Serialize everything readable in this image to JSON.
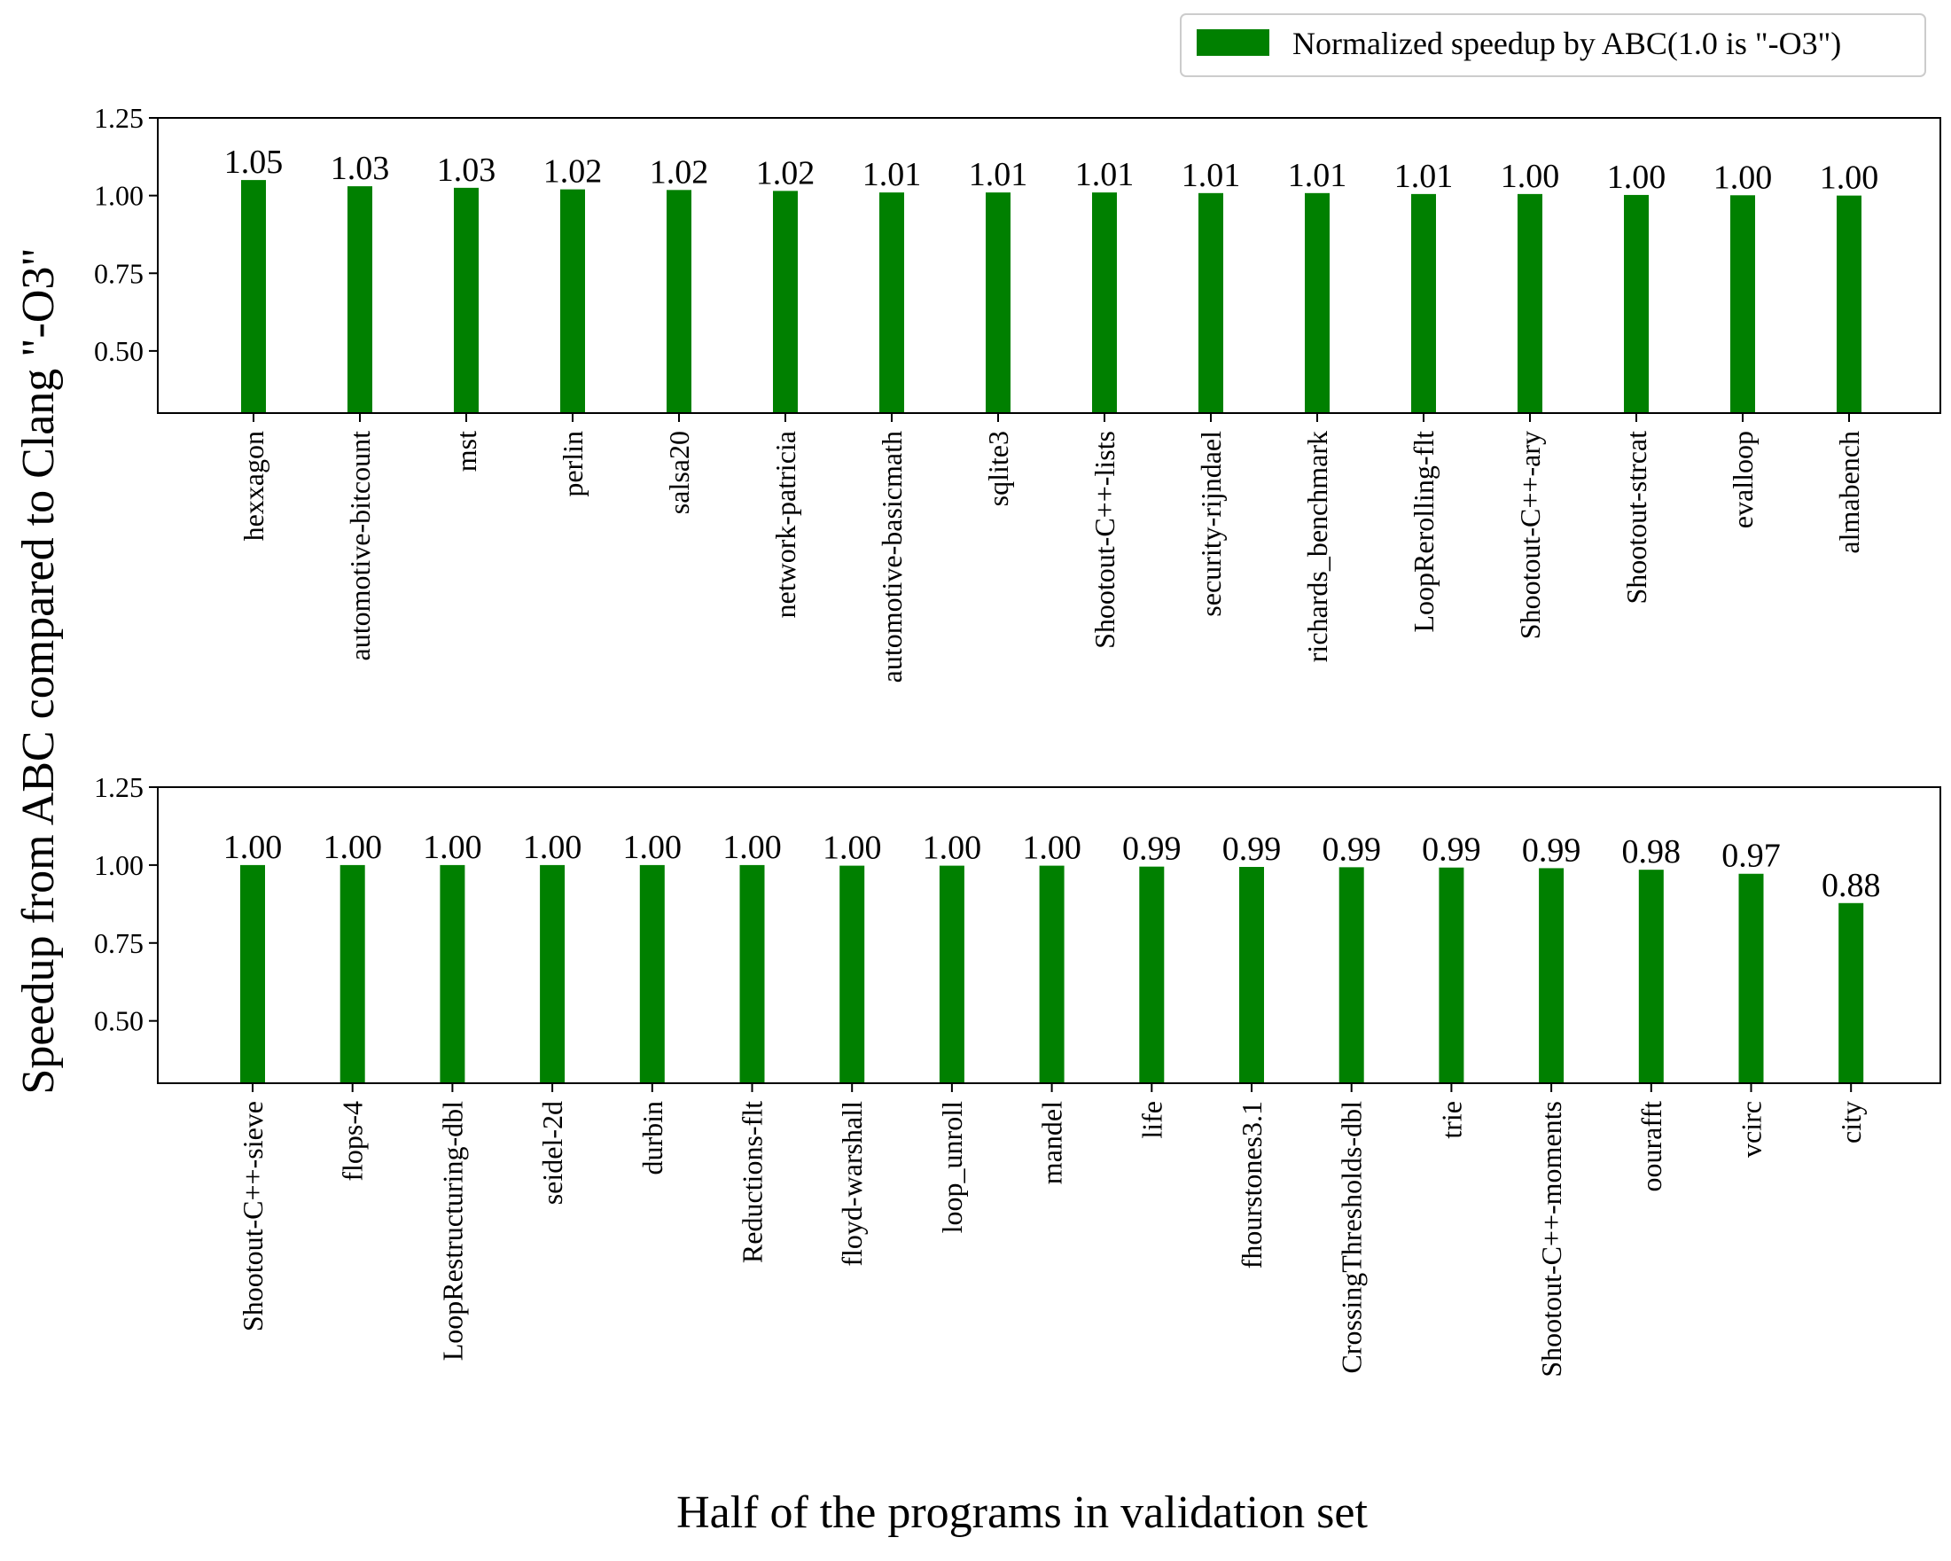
{
  "legend": {
    "label": "Normalized speedup by ABC(1.0 is \"-O3\")",
    "color": "#008000",
    "position": "top-right"
  },
  "ylabel": "Speedup from ABC compared to Clang \"-O3\"",
  "xlabel": "Half of the programs in validation set",
  "colors": {
    "bar": "#008000"
  },
  "chart_data": [
    {
      "type": "bar",
      "ylim": [
        0.3,
        1.25
      ],
      "yticks": [
        "0.50",
        "0.75",
        "1.00",
        "1.25"
      ],
      "grid": false,
      "categories": [
        "hexxagon",
        "automotive-bitcount",
        "mst",
        "perlin",
        "salsa20",
        "network-patricia",
        "automotive-basicmath",
        "sqlite3",
        "Shootout-C++-lists",
        "security-rijndael",
        "richards_benchmark",
        "LoopRerolling-flt",
        "Shootout-C++-ary",
        "Shootout-strcat",
        "evalloop",
        "almabench"
      ],
      "values": [
        1.05,
        1.03,
        1.025,
        1.02,
        1.018,
        1.015,
        1.01,
        1.01,
        1.01,
        1.008,
        1.008,
        1.005,
        1.005,
        1.002,
        1.001,
        1.0
      ],
      "labels": [
        "1.05",
        "1.03",
        "1.03",
        "1.02",
        "1.02",
        "1.02",
        "1.01",
        "1.01",
        "1.01",
        "1.01",
        "1.01",
        "1.01",
        "1.00",
        "1.00",
        "1.00",
        "1.00"
      ]
    },
    {
      "type": "bar",
      "ylim": [
        0.3,
        1.25
      ],
      "yticks": [
        "0.50",
        "0.75",
        "1.00",
        "1.25"
      ],
      "grid": false,
      "categories": [
        "Shootout-C++-sieve",
        "flops-4",
        "LoopRestructuring-dbl",
        "seidel-2d",
        "durbin",
        "Reductions-flt",
        "floyd-warshall",
        "loop_unroll",
        "mandel",
        "life",
        "fhourstones3.1",
        "CrossingThresholds-dbl",
        "trie",
        "Shootout-C++-moments",
        "oourafft",
        "vcirc",
        "city"
      ],
      "values": [
        1.0,
        1.0,
        1.0,
        1.0,
        1.0,
        1.0,
        0.998,
        0.998,
        0.998,
        0.995,
        0.994,
        0.993,
        0.992,
        0.99,
        0.985,
        0.972,
        0.878
      ],
      "labels": [
        "1.00",
        "1.00",
        "1.00",
        "1.00",
        "1.00",
        "1.00",
        "1.00",
        "1.00",
        "1.00",
        "0.99",
        "0.99",
        "0.99",
        "0.99",
        "0.99",
        "0.98",
        "0.97",
        "0.88"
      ]
    }
  ]
}
